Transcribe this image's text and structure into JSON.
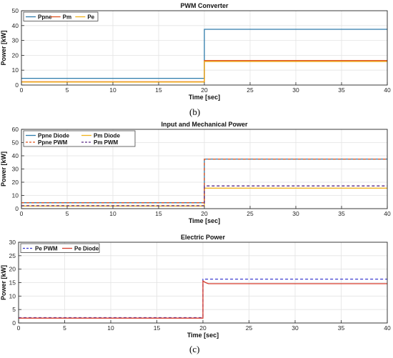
{
  "captions": {
    "b": "(b)",
    "c": "(c)"
  },
  "chart_data": [
    {
      "type": "line",
      "title": "PWM Converter",
      "xlabel": "Time [sec]",
      "ylabel": "Power [kW]",
      "xlim": [
        0,
        40
      ],
      "ylim": [
        0,
        50
      ],
      "xticks": [
        "0",
        "5",
        "10",
        "15",
        "20",
        "25",
        "30",
        "35",
        "40"
      ],
      "yticks": [
        "0",
        "10",
        "20",
        "30",
        "40",
        "50"
      ],
      "grid": true,
      "legend": "top-left",
      "legend_cols": 3,
      "series": [
        {
          "name": "Ppne",
          "color": "#2d7bab",
          "dash": "solid",
          "x": [
            0,
            20,
            20,
            40
          ],
          "y": [
            4.5,
            4.5,
            37.5,
            37.5
          ]
        },
        {
          "name": "Pm",
          "color": "#e0531f",
          "dash": "solid",
          "x": [
            0,
            20,
            20,
            40
          ],
          "y": [
            2.2,
            2.2,
            16.5,
            16.5
          ]
        },
        {
          "name": "Pe",
          "color": "#f0b21c",
          "dash": "solid",
          "x": [
            0,
            20,
            20,
            40
          ],
          "y": [
            2.0,
            2.0,
            15.8,
            15.8
          ]
        }
      ]
    },
    {
      "type": "line",
      "title": "Input and Mechanical Power",
      "xlabel": "Time [sec]",
      "ylabel": "Power [kW]",
      "xlim": [
        0,
        40
      ],
      "ylim": [
        0,
        60
      ],
      "xticks": [
        "0",
        "5",
        "10",
        "15",
        "20",
        "25",
        "30",
        "35",
        "40"
      ],
      "yticks": [
        "0",
        "10",
        "20",
        "30",
        "40",
        "50",
        "60"
      ],
      "grid": true,
      "legend": "top-left",
      "legend_cols": 2,
      "series": [
        {
          "name": "Ppne Diode",
          "color": "#2d7bab",
          "dash": "solid",
          "x": [
            0,
            20,
            20,
            40
          ],
          "y": [
            4.5,
            4.5,
            37.5,
            37.5
          ]
        },
        {
          "name": "Pm Diode",
          "color": "#f0b21c",
          "dash": "solid",
          "x": [
            0,
            20,
            20,
            40
          ],
          "y": [
            2.0,
            2.0,
            15.5,
            15.5
          ]
        },
        {
          "name": "Ppne PWM",
          "color": "#e0531f",
          "dash": "dashed",
          "x": [
            0,
            20,
            20,
            40
          ],
          "y": [
            4.5,
            4.5,
            37.5,
            37.5
          ]
        },
        {
          "name": "Pm PWM",
          "color": "#5b2a86",
          "dash": "dashed",
          "x": [
            0,
            20,
            20,
            40
          ],
          "y": [
            2.2,
            2.2,
            17.2,
            17.2
          ]
        }
      ]
    },
    {
      "type": "line",
      "title": "Electric Power",
      "xlabel": "Time [sec]",
      "ylabel": "Power [kW]",
      "xlim": [
        0,
        40
      ],
      "ylim": [
        0,
        30
      ],
      "xticks": [
        "0",
        "5",
        "10",
        "15",
        "20",
        "25",
        "30",
        "35",
        "40"
      ],
      "yticks": [
        "0",
        "5",
        "10",
        "15",
        "20",
        "25",
        "30"
      ],
      "grid": true,
      "legend": "top-left",
      "legend_cols": 2,
      "series": [
        {
          "name": "Pe PWM",
          "color": "#3a3ad0",
          "dash": "dashed",
          "x": [
            0,
            20,
            20,
            40
          ],
          "y": [
            2.0,
            2.0,
            16.3,
            16.3
          ]
        },
        {
          "name": "Pe Diode",
          "color": "#d63a2a",
          "dash": "solid",
          "x": [
            0,
            20,
            20,
            20.3,
            20.6,
            40
          ],
          "y": [
            1.8,
            1.8,
            15.6,
            15.0,
            14.6,
            14.6
          ]
        }
      ]
    }
  ]
}
